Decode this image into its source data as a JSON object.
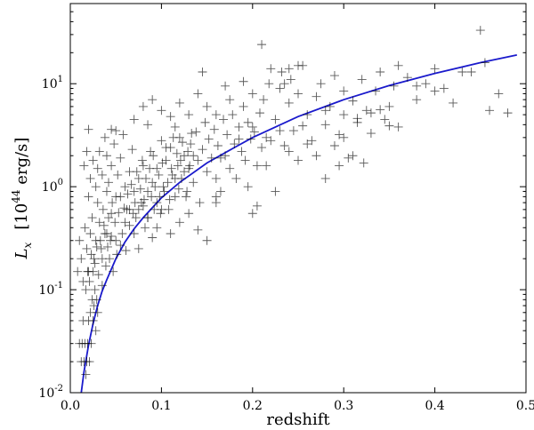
{
  "chart_data": {
    "type": "scatter",
    "xlabel": "redshift",
    "ylabel": "L_x   [10^44 erg/s]",
    "ylabel_parts": {
      "symbol": "L",
      "sub": "x",
      "unit_base": "10",
      "unit_exp": "44",
      "unit_rest": " erg/s]",
      "unit_open": "["
    },
    "x_axis": {
      "min": 0.0,
      "max": 0.5,
      "scale": "linear",
      "ticks": [
        0.0,
        0.1,
        0.2,
        0.3,
        0.4,
        0.5
      ],
      "tick_labels": [
        "0.0",
        "0.1",
        "0.2",
        "0.3",
        "0.4",
        "0.5"
      ]
    },
    "y_axis": {
      "min": 0.01,
      "max": 60,
      "scale": "log",
      "ticks": [
        0.01,
        0.1,
        1,
        10
      ],
      "tick_labels": [
        {
          "base": "10",
          "exp": "-2"
        },
        {
          "base": "10",
          "exp": "-1"
        },
        {
          "base": "10",
          "exp": "0"
        },
        {
          "base": "10",
          "exp": "1"
        }
      ]
    },
    "grid": false,
    "marker": "plus",
    "marker_color": "#000000",
    "fit_color": "#1a1acc",
    "fit_curve": {
      "x": [
        0.012,
        0.015,
        0.02,
        0.025,
        0.03,
        0.035,
        0.04,
        0.05,
        0.06,
        0.07,
        0.08,
        0.1,
        0.12,
        0.15,
        0.18,
        0.2,
        0.25,
        0.3,
        0.35,
        0.4,
        0.45,
        0.49
      ],
      "y": [
        0.01,
        0.016,
        0.029,
        0.047,
        0.07,
        0.097,
        0.125,
        0.2,
        0.29,
        0.39,
        0.5,
        0.78,
        1.1,
        1.7,
        2.4,
        3.0,
        4.8,
        7.0,
        9.6,
        12.6,
        16.0,
        19.0
      ]
    },
    "points": [
      [
        0.01,
        0.03
      ],
      [
        0.012,
        0.02
      ],
      [
        0.013,
        0.03
      ],
      [
        0.014,
        0.05
      ],
      [
        0.015,
        0.02
      ],
      [
        0.016,
        0.03
      ],
      [
        0.017,
        0.015
      ],
      [
        0.018,
        0.02
      ],
      [
        0.019,
        0.03
      ],
      [
        0.02,
        0.05
      ],
      [
        0.021,
        0.02
      ],
      [
        0.022,
        0.06
      ],
      [
        0.023,
        0.03
      ],
      [
        0.024,
        0.08
      ],
      [
        0.025,
        0.05
      ],
      [
        0.026,
        0.07
      ],
      [
        0.027,
        0.1
      ],
      [
        0.028,
        0.04
      ],
      [
        0.029,
        0.08
      ],
      [
        0.03,
        0.06
      ],
      [
        0.008,
        0.15
      ],
      [
        0.01,
        0.3
      ],
      [
        0.012,
        0.2
      ],
      [
        0.014,
        0.12
      ],
      [
        0.016,
        0.4
      ],
      [
        0.018,
        0.25
      ],
      [
        0.02,
        0.15
      ],
      [
        0.022,
        0.35
      ],
      [
        0.024,
        0.5
      ],
      [
        0.026,
        0.2
      ],
      [
        0.028,
        0.3
      ],
      [
        0.03,
        0.7
      ],
      [
        0.032,
        0.45
      ],
      [
        0.034,
        0.25
      ],
      [
        0.036,
        0.6
      ],
      [
        0.038,
        0.35
      ],
      [
        0.04,
        0.9
      ],
      [
        0.042,
        0.5
      ],
      [
        0.044,
        0.3
      ],
      [
        0.046,
        0.7
      ],
      [
        0.02,
        0.8
      ],
      [
        0.022,
        1.2
      ],
      [
        0.025,
        1.8
      ],
      [
        0.028,
        1.0
      ],
      [
        0.03,
        1.5
      ],
      [
        0.032,
        2.2
      ],
      [
        0.035,
        1.3
      ],
      [
        0.038,
        3.0
      ],
      [
        0.04,
        2.0
      ],
      [
        0.042,
        1.1
      ],
      [
        0.045,
        1.6
      ],
      [
        0.048,
        2.6
      ],
      [
        0.05,
        0.8
      ],
      [
        0.052,
        1.3
      ],
      [
        0.055,
        1.9
      ],
      [
        0.058,
        3.2
      ],
      [
        0.06,
        1.0
      ],
      [
        0.062,
        0.6
      ],
      [
        0.065,
        1.4
      ],
      [
        0.068,
        2.3
      ],
      [
        0.015,
        1.6
      ],
      [
        0.018,
        2.2
      ],
      [
        0.02,
        3.6
      ],
      [
        0.045,
        3.6
      ],
      [
        0.05,
        3.5
      ],
      [
        0.07,
        4.5
      ],
      [
        0.08,
        6.0
      ],
      [
        0.085,
        4.0
      ],
      [
        0.09,
        7.0
      ],
      [
        0.1,
        5.5
      ],
      [
        0.11,
        4.8
      ],
      [
        0.115,
        3.8
      ],
      [
        0.12,
        6.5
      ],
      [
        0.13,
        5.0
      ],
      [
        0.14,
        8.0
      ],
      [
        0.145,
        13.0
      ],
      [
        0.15,
        6.0
      ],
      [
        0.16,
        5.0
      ],
      [
        0.17,
        9.5
      ],
      [
        0.175,
        7.0
      ],
      [
        0.07,
        0.9
      ],
      [
        0.072,
        0.5
      ],
      [
        0.075,
        1.2
      ],
      [
        0.078,
        0.7
      ],
      [
        0.08,
        1.6
      ],
      [
        0.082,
        0.4
      ],
      [
        0.085,
        0.9
      ],
      [
        0.088,
        2.2
      ],
      [
        0.09,
        1.1
      ],
      [
        0.092,
        0.6
      ],
      [
        0.095,
        1.5
      ],
      [
        0.098,
        0.8
      ],
      [
        0.1,
        2.8
      ],
      [
        0.102,
        1.0
      ],
      [
        0.105,
        1.8
      ],
      [
        0.108,
        0.6
      ],
      [
        0.11,
        2.4
      ],
      [
        0.112,
        1.3
      ],
      [
        0.115,
        0.8
      ],
      [
        0.118,
        1.6
      ],
      [
        0.12,
        3.0
      ],
      [
        0.122,
        1.2
      ],
      [
        0.125,
        2.0
      ],
      [
        0.128,
        0.9
      ],
      [
        0.13,
        1.5
      ],
      [
        0.132,
        2.6
      ],
      [
        0.135,
        1.1
      ],
      [
        0.138,
        3.4
      ],
      [
        0.14,
        1.8
      ],
      [
        0.142,
        0.7
      ],
      [
        0.145,
        2.3
      ],
      [
        0.148,
        4.2
      ],
      [
        0.15,
        1.4
      ],
      [
        0.152,
        2.9
      ],
      [
        0.155,
        1.9
      ],
      [
        0.158,
        3.6
      ],
      [
        0.16,
        1.2
      ],
      [
        0.162,
        2.5
      ],
      [
        0.165,
        0.9
      ],
      [
        0.168,
        4.5
      ],
      [
        0.17,
        2.0
      ],
      [
        0.172,
        3.2
      ],
      [
        0.175,
        1.5
      ],
      [
        0.178,
        5.0
      ],
      [
        0.18,
        2.6
      ],
      [
        0.182,
        1.2
      ],
      [
        0.185,
        3.8
      ],
      [
        0.188,
        2.2
      ],
      [
        0.19,
        6.0
      ],
      [
        0.192,
        1.8
      ],
      [
        0.195,
        4.2
      ],
      [
        0.198,
        2.9
      ],
      [
        0.2,
        8.0
      ],
      [
        0.202,
        3.4
      ],
      [
        0.205,
        1.6
      ],
      [
        0.208,
        5.2
      ],
      [
        0.21,
        2.4
      ],
      [
        0.212,
        7.0
      ],
      [
        0.215,
        3.0
      ],
      [
        0.218,
        10.0
      ],
      [
        0.21,
        24.0
      ],
      [
        0.22,
        14.0
      ],
      [
        0.225,
        4.5
      ],
      [
        0.23,
        9.0
      ],
      [
        0.232,
        13.0
      ],
      [
        0.235,
        2.5
      ],
      [
        0.24,
        6.5
      ],
      [
        0.242,
        11.0
      ],
      [
        0.245,
        3.5
      ],
      [
        0.25,
        8.0
      ],
      [
        0.255,
        15.0
      ],
      [
        0.26,
        5.0
      ],
      [
        0.265,
        2.8
      ],
      [
        0.27,
        7.5
      ],
      [
        0.275,
        10.0
      ],
      [
        0.28,
        4.0
      ],
      [
        0.285,
        6.0
      ],
      [
        0.29,
        12.0
      ],
      [
        0.295,
        3.2
      ],
      [
        0.3,
        8.5
      ],
      [
        0.3,
        5.0
      ],
      [
        0.305,
        1.9
      ],
      [
        0.31,
        6.8
      ],
      [
        0.315,
        4.2
      ],
      [
        0.32,
        11.0
      ],
      [
        0.322,
        1.7
      ],
      [
        0.325,
        5.5
      ],
      [
        0.33,
        3.3
      ],
      [
        0.335,
        8.5
      ],
      [
        0.34,
        13.0
      ],
      [
        0.345,
        4.5
      ],
      [
        0.35,
        6.0
      ],
      [
        0.355,
        9.5
      ],
      [
        0.36,
        3.8
      ],
      [
        0.37,
        11.5
      ],
      [
        0.38,
        7.0
      ],
      [
        0.39,
        10.0
      ],
      [
        0.4,
        14.0
      ],
      [
        0.41,
        9.0
      ],
      [
        0.42,
        6.5
      ],
      [
        0.44,
        13.0
      ],
      [
        0.45,
        33.0
      ],
      [
        0.455,
        16.0
      ],
      [
        0.46,
        5.5
      ],
      [
        0.47,
        8.0
      ],
      [
        0.48,
        5.2
      ],
      [
        0.36,
        15.0
      ],
      [
        0.38,
        9.5
      ],
      [
        0.4,
        8.5
      ],
      [
        0.43,
        13.0
      ],
      [
        0.2,
        0.55
      ],
      [
        0.205,
        0.65
      ],
      [
        0.225,
        0.9
      ],
      [
        0.25,
        1.8
      ],
      [
        0.27,
        2.0
      ],
      [
        0.28,
        1.2
      ],
      [
        0.295,
        1.6
      ],
      [
        0.31,
        2.0
      ],
      [
        0.315,
        4.6
      ],
      [
        0.33,
        5.2
      ],
      [
        0.035,
        0.2
      ],
      [
        0.04,
        0.35
      ],
      [
        0.045,
        0.55
      ],
      [
        0.05,
        0.3
      ],
      [
        0.055,
        0.8
      ],
      [
        0.06,
        0.45
      ],
      [
        0.065,
        0.6
      ],
      [
        0.07,
        0.35
      ],
      [
        0.075,
        0.25
      ],
      [
        0.08,
        0.65
      ],
      [
        0.085,
        0.5
      ],
      [
        0.09,
        0.32
      ],
      [
        0.095,
        0.4
      ],
      [
        0.1,
        0.6
      ],
      [
        0.11,
        0.35
      ],
      [
        0.12,
        0.45
      ],
      [
        0.13,
        0.55
      ],
      [
        0.14,
        0.38
      ],
      [
        0.15,
        0.3
      ],
      [
        0.16,
        0.7
      ],
      [
        0.017,
        0.1
      ],
      [
        0.019,
        0.15
      ],
      [
        0.021,
        0.12
      ],
      [
        0.023,
        0.22
      ],
      [
        0.025,
        0.15
      ],
      [
        0.027,
        0.18
      ],
      [
        0.029,
        0.26
      ],
      [
        0.031,
        0.14
      ],
      [
        0.033,
        0.3
      ],
      [
        0.035,
        0.11
      ],
      [
        0.037,
        0.42
      ],
      [
        0.039,
        0.17
      ],
      [
        0.041,
        0.26
      ],
      [
        0.043,
        0.2
      ],
      [
        0.045,
        0.33
      ],
      [
        0.047,
        0.15
      ],
      [
        0.049,
        0.45
      ],
      [
        0.051,
        0.22
      ],
      [
        0.053,
        0.56
      ],
      [
        0.055,
        0.27
      ],
      [
        0.057,
        0.35
      ],
      [
        0.059,
        0.62
      ],
      [
        0.061,
        0.24
      ],
      [
        0.063,
        0.85
      ],
      [
        0.065,
        0.42
      ],
      [
        0.067,
        1.05
      ],
      [
        0.069,
        0.55
      ],
      [
        0.071,
        0.7
      ],
      [
        0.073,
        1.4
      ],
      [
        0.075,
        0.6
      ],
      [
        0.077,
        0.95
      ],
      [
        0.079,
        1.8
      ],
      [
        0.081,
        0.75
      ],
      [
        0.083,
        1.2
      ],
      [
        0.085,
        0.5
      ],
      [
        0.087,
        1.5
      ],
      [
        0.089,
        0.8
      ],
      [
        0.091,
        2.0
      ],
      [
        0.093,
        1.0
      ],
      [
        0.095,
        0.7
      ],
      [
        0.097,
        1.3
      ],
      [
        0.099,
        0.55
      ],
      [
        0.101,
        1.7
      ],
      [
        0.103,
        0.9
      ],
      [
        0.105,
        2.4
      ],
      [
        0.107,
        1.1
      ],
      [
        0.109,
        0.75
      ],
      [
        0.111,
        1.5
      ],
      [
        0.113,
        3.0
      ],
      [
        0.115,
        1.2
      ],
      [
        0.117,
        2.1
      ],
      [
        0.119,
        0.95
      ],
      [
        0.121,
        1.8
      ],
      [
        0.123,
        2.7
      ],
      [
        0.125,
        1.4
      ],
      [
        0.127,
        0.8
      ],
      [
        0.129,
        2.2
      ],
      [
        0.131,
        1.6
      ],
      [
        0.133,
        3.3
      ],
      [
        0.135,
        2.0
      ],
      [
        0.16,
        0.8
      ],
      [
        0.165,
        1.9
      ],
      [
        0.185,
        2.9
      ],
      [
        0.195,
        1.0
      ],
      [
        0.2,
        3.8
      ],
      [
        0.215,
        1.6
      ],
      [
        0.22,
        2.8
      ],
      [
        0.23,
        3.5
      ],
      [
        0.24,
        2.2
      ],
      [
        0.255,
        3.9
      ],
      [
        0.26,
        2.6
      ],
      [
        0.28,
        5.5
      ],
      [
        0.29,
        2.5
      ],
      [
        0.3,
        3.0
      ],
      [
        0.34,
        5.6
      ],
      [
        0.35,
        3.9
      ],
      [
        0.25,
        15.0
      ],
      [
        0.235,
        10.0
      ],
      [
        0.24,
        14.0
      ],
      [
        0.19,
        10.5
      ]
    ]
  }
}
